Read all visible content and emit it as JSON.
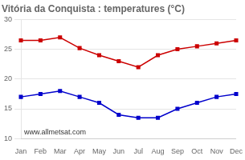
{
  "chart_data": {
    "type": "line",
    "title": "Vitória da Conquista : temperatures (°C)",
    "categories": [
      "Jan",
      "Feb",
      "Mar",
      "Apr",
      "May",
      "Jun",
      "Jul",
      "Aug",
      "Sep",
      "Oct",
      "Nov",
      "Dec"
    ],
    "series": [
      {
        "color": "#cc0000",
        "values": [
          26.5,
          26.5,
          27.0,
          25.2,
          24.0,
          23.0,
          22.0,
          24.0,
          25.0,
          25.5,
          26.0,
          26.5
        ],
        "marker": "square",
        "line_style": "solid"
      },
      {
        "color": "#0000cc",
        "values": [
          17.0,
          17.5,
          18.0,
          17.0,
          16.0,
          14.0,
          13.5,
          13.5,
          15.0,
          16.0,
          17.0,
          17.5
        ],
        "marker": "square",
        "line_style": "solid"
      }
    ],
    "ylim": [
      10,
      30
    ],
    "yticks": [
      10,
      15,
      20,
      25,
      30
    ],
    "grid": "y",
    "annotations": [
      "www.allmetsat.com"
    ]
  }
}
